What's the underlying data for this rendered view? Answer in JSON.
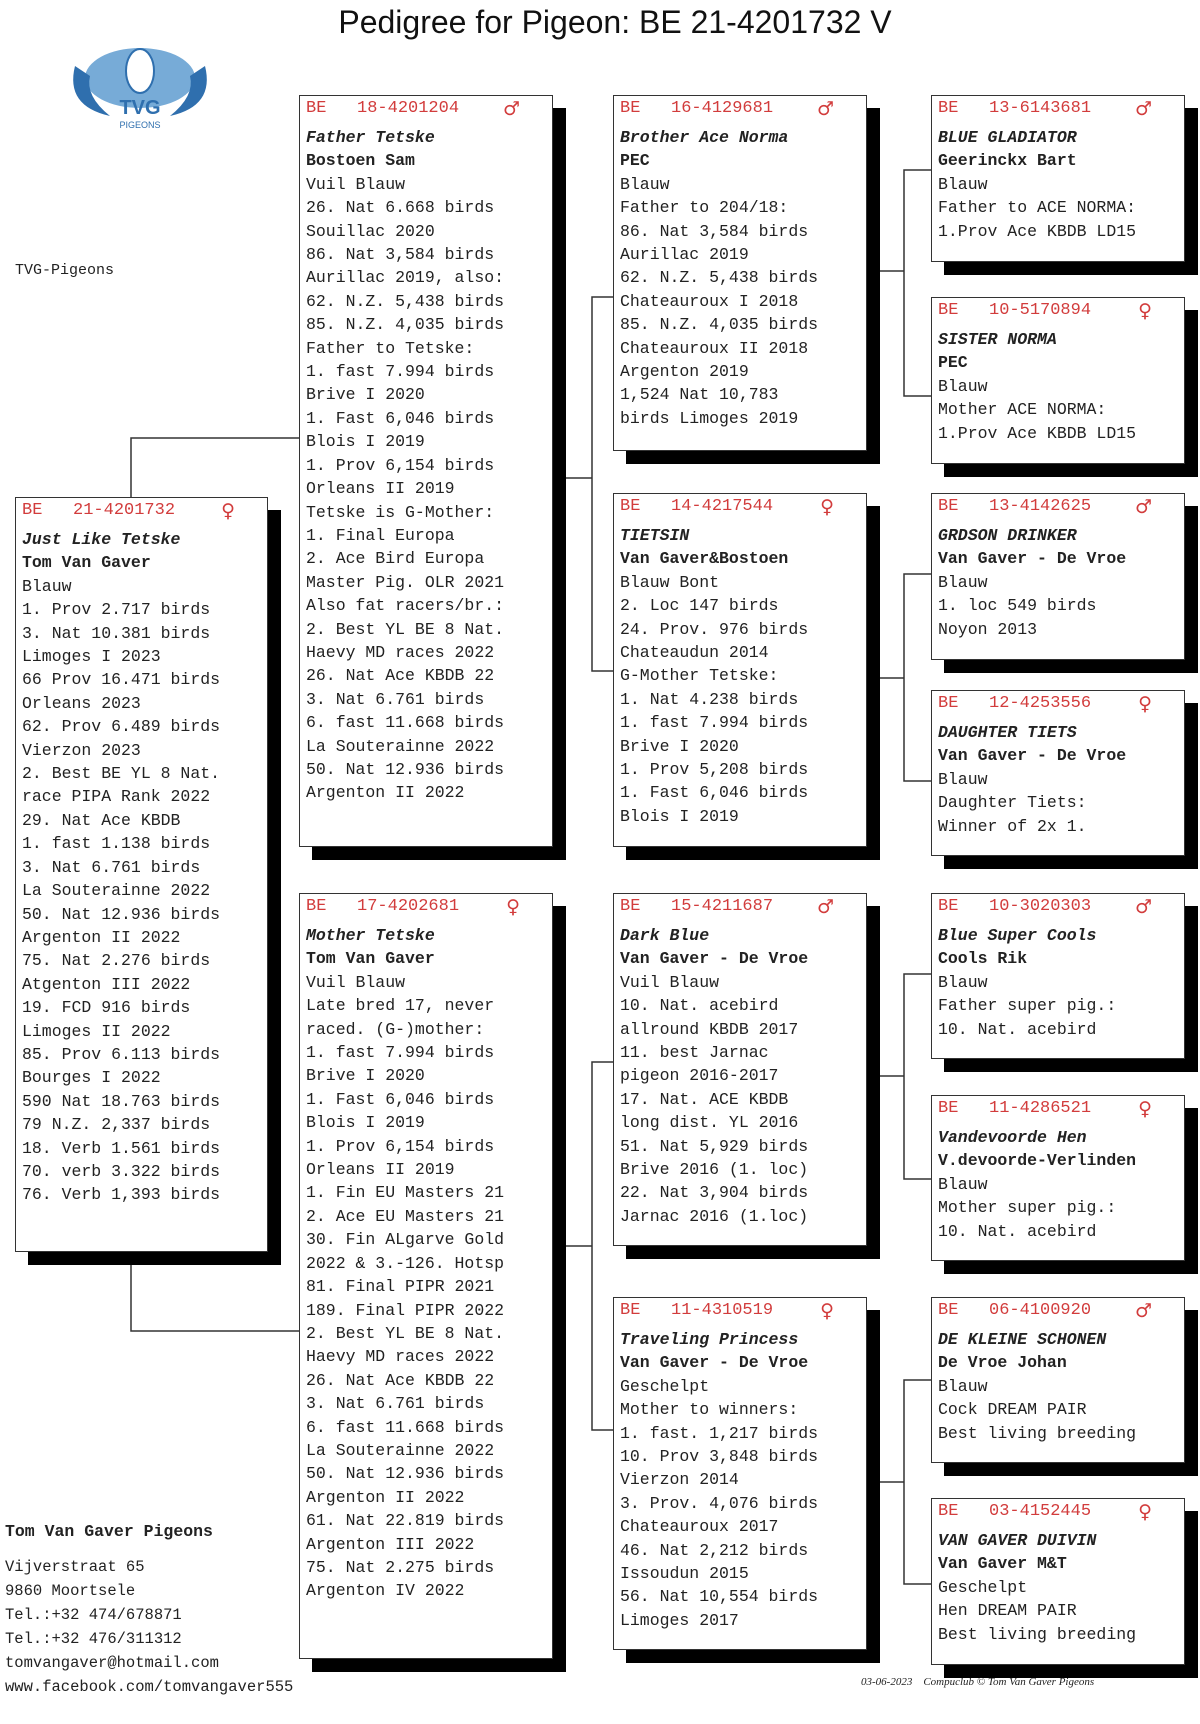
{
  "title": "Pedigree for Pigeon: BE  21-4201732 V",
  "logo": {
    "text": "TVG",
    "subtext": "PIGEONS"
  },
  "loft_label": "TVG-Pigeons",
  "colors": {
    "ring": "#d23c3c",
    "shadow": "#000000"
  },
  "pigeons": [
    {
      "role": "subject",
      "country": "BE",
      "ring": "21-4201732",
      "sex": "♀",
      "name": "Just Like Tetske",
      "breeder": "Tom Van Gaver",
      "color": "Blauw",
      "notes": [
        "1. Prov 2.717 birds",
        "3. Nat 10.381 birds",
        "Limoges I 2023",
        "66 Prov 16.471 birds",
        "Orleans 2023",
        "62. Prov 6.489 birds",
        "Vierzon 2023",
        "2. Best BE YL 8 Nat.",
        "race PIPA Rank 2022",
        "29. Nat Ace KBDB",
        "1. fast 1.138 birds",
        "3. Nat 6.761 birds",
        "La Souterainne 2022",
        "50. Nat 12.936 birds",
        "Argenton II 2022",
        "75. Nat 2.276 birds",
        "Atgenton III 2022",
        "19. FCD 916 birds",
        "Limoges II 2022",
        "85. Prov 6.113 birds",
        "Bourges I 2022",
        "590 Nat 18.763 birds",
        "79 N.Z. 2,337 birds",
        "18. Verb 1.561 birds",
        "70. verb 3.322 birds",
        "76. Verb 1,393 birds"
      ]
    },
    {
      "role": "father",
      "country": "BE",
      "ring": "18-4201204",
      "sex": "♂",
      "name": "Father Tetske",
      "breeder": "Bostoen Sam",
      "color": "Vuil Blauw",
      "notes": [
        "26. Nat 6.668 birds",
        "Souillac 2020",
        "86. Nat 3,584 birds",
        "Aurillac 2019, also:",
        "62. N.Z. 5,438 birds",
        "85. N.Z. 4,035 birds",
        "Father to Tetske:",
        "1. fast 7.994 birds",
        "Brive I 2020",
        "1. Fast 6,046 birds",
        "Blois I 2019",
        "1. Prov 6,154 birds",
        "Orleans II 2019",
        "Tetske is G-Mother:",
        "1. Final Europa",
        "2. Ace Bird Europa",
        "Master Pig. OLR 2021",
        "Also fat racers/br.:",
        "2. Best YL BE 8 Nat.",
        "Haevy MD races 2022",
        "26. Nat Ace KBDB 22",
        "3. Nat 6.761 birds",
        "6. fast 11.668 birds",
        "La Souterainne 2022",
        "50. Nat 12.936 birds",
        "Argenton II 2022"
      ]
    },
    {
      "role": "mother",
      "country": "BE",
      "ring": "17-4202681",
      "sex": "♀",
      "name": "Mother Tetske",
      "breeder": "Tom Van Gaver",
      "color": "Vuil Blauw",
      "notes": [
        "Late bred 17, never",
        "raced. (G-)mother:",
        "1. fast 7.994 birds",
        "Brive I 2020",
        "1. Fast 6,046 birds",
        "Blois I 2019",
        "1. Prov 6,154 birds",
        "Orleans II 2019",
        "1. Fin EU Masters 21",
        "2. Ace EU Masters 21",
        "30. Fin ALgarve Gold",
        "2022 & 3.-126. Hotsp",
        "81. Final PIPR 2021",
        "189. Final PIPR 2022",
        "2. Best YL BE 8 Nat.",
        "Haevy MD races 2022",
        "26. Nat Ace KBDB 22",
        "3. Nat 6.761 birds",
        "6. fast 11.668 birds",
        "La Souterainne 2022",
        "50. Nat 12.936 birds",
        "Argenton II 2022",
        "61. Nat 22.819 birds",
        "Argenton III 2022",
        "75. Nat 2.275 birds",
        "Argenton IV 2022"
      ]
    },
    {
      "role": "ff",
      "country": "BE",
      "ring": "16-4129681",
      "sex": "♂",
      "name": "Brother Ace Norma",
      "breeder": "PEC",
      "color": "Blauw",
      "notes": [
        "Father to 204/18:",
        "86. Nat 3,584 birds",
        "Aurillac 2019",
        "62. N.Z. 5,438 birds",
        "Chateauroux I 2018",
        "85. N.Z. 4,035 birds",
        "Chateauroux II 2018",
        "Argenton 2019",
        "1,524 Nat 10,783",
        "birds Limoges 2019"
      ]
    },
    {
      "role": "fm",
      "country": "BE",
      "ring": "14-4217544",
      "sex": "♀",
      "name": "TIETSIN",
      "breeder": "Van Gaver&Bostoen",
      "color": "Blauw Bont",
      "notes": [
        "2. Loc 147 birds",
        "24. Prov. 976 birds",
        "Chateaudun 2014",
        "G-Mother Tetske:",
        "1. Nat 4.238 birds",
        "1. fast 7.994 birds",
        "Brive I 2020",
        "1. Prov 5,208 birds",
        "1. Fast 6,046 birds",
        "Blois I 2019"
      ]
    },
    {
      "role": "mf",
      "country": "BE",
      "ring": "15-4211687",
      "sex": "♂",
      "name": "Dark Blue",
      "breeder": "Van Gaver - De Vroe",
      "color": "Vuil Blauw",
      "notes": [
        "10. Nat. acebird",
        "allround KBDB 2017",
        "11. best Jarnac",
        "pigeon 2016-2017",
        "17. Nat. ACE KBDB",
        "long dist. YL 2016",
        "51. Nat 5,929 birds",
        "Brive 2016 (1. loc)",
        "22. Nat 3,904 birds",
        "Jarnac 2016 (1.loc)"
      ]
    },
    {
      "role": "mm",
      "country": "BE",
      "ring": "11-4310519",
      "sex": "♀",
      "name": "Traveling Princess",
      "breeder": "Van Gaver - De Vroe",
      "color": "Geschelpt",
      "notes": [
        "Mother to winners:",
        "1. fast. 1,217 birds",
        "10. Prov 3,848 birds",
        "Vierzon 2014",
        "3. Prov. 4,076 birds",
        "Chateauroux 2017",
        "46. Nat 2,212 birds",
        "Issoudun 2015",
        "56. Nat 10,554 birds",
        "Limoges 2017"
      ]
    },
    {
      "role": "fff",
      "country": "BE",
      "ring": "13-6143681",
      "sex": "♂",
      "name": "BLUE GLADIATOR",
      "breeder": "Geerinckx Bart",
      "color": "Blauw",
      "notes": [
        "Father to ACE NORMA:",
        "1.Prov Ace KBDB LD15"
      ]
    },
    {
      "role": "ffm",
      "country": "BE",
      "ring": "10-5170894",
      "sex": "♀",
      "name": "SISTER NORMA",
      "breeder": "PEC",
      "color": "Blauw",
      "notes": [
        "Mother ACE NORMA:",
        "1.Prov Ace KBDB LD15"
      ]
    },
    {
      "role": "fmf",
      "country": "BE",
      "ring": "13-4142625",
      "sex": "♂",
      "name": "GRDSON DRINKER",
      "breeder": "Van Gaver - De Vroe",
      "color": "Blauw",
      "notes": [
        "1. loc 549 birds",
        "Noyon 2013"
      ]
    },
    {
      "role": "fmm",
      "country": "BE",
      "ring": "12-4253556",
      "sex": "♀",
      "name": "DAUGHTER TIETS",
      "breeder": "Van Gaver - De Vroe",
      "color": "Blauw",
      "notes": [
        "Daughter Tiets:",
        "Winner of 2x 1."
      ]
    },
    {
      "role": "mff",
      "country": "BE",
      "ring": "10-3020303",
      "sex": "♂",
      "name": "Blue Super Cools",
      "breeder": "Cools Rik",
      "color": "Blauw",
      "notes": [
        "Father super pig.:",
        "10. Nat. acebird"
      ]
    },
    {
      "role": "mfm",
      "country": "BE",
      "ring": "11-4286521",
      "sex": "♀",
      "name": "Vandevoorde Hen",
      "breeder": "V.devoorde-Verlinden",
      "color": "Blauw",
      "notes": [
        "Mother super pig.:",
        "10. Nat. acebird"
      ]
    },
    {
      "role": "mmf",
      "country": "BE",
      "ring": "06-4100920",
      "sex": "♂",
      "name": "DE KLEINE SCHONEN",
      "breeder": "De Vroe Johan",
      "color": "Blauw",
      "notes": [
        "Cock DREAM PAIR",
        "Best living breeding"
      ]
    },
    {
      "role": "mmm",
      "country": "BE",
      "ring": "03-4152445",
      "sex": "♀",
      "name": "VAN GAVER DUIVIN",
      "breeder": "Van Gaver M&T",
      "color": "Geschelpt",
      "notes": [
        "Hen DREAM PAIR",
        "Best living breeding"
      ]
    }
  ],
  "footer": {
    "owner": "Tom Van Gaver Pigeons",
    "address": [
      "Vijverstraat 65",
      "9860  Moortsele",
      "Tel.:+32 474/678871",
      "Tel.:+32 476/311312",
      "tomvangaver@hotmail.com",
      "www.facebook.com/tomvangaver555"
    ],
    "date": "03-06-2023",
    "credit": "Compuclub © Tom Van Gaver Pigeons"
  }
}
